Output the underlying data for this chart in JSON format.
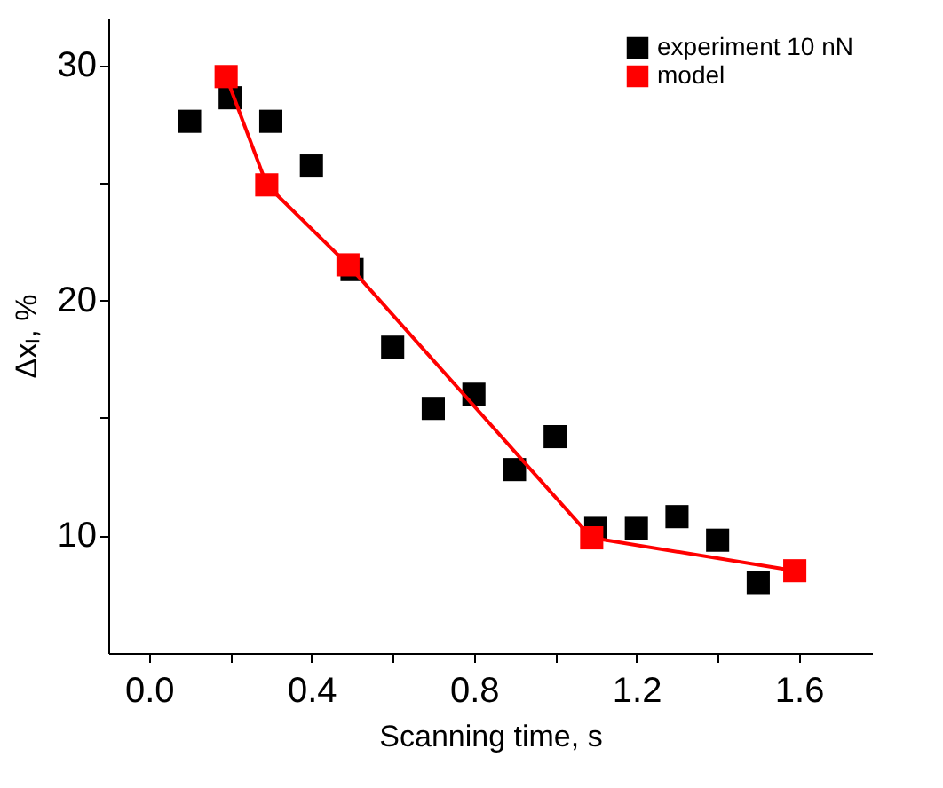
{
  "chart_data": {
    "type": "scatter",
    "xlabel": "Scanning time, s",
    "ylabel": "Δxₗ, %",
    "xlim": [
      -0.1,
      1.78
    ],
    "ylim": [
      5,
      32
    ],
    "xticks": [
      {
        "value": 0,
        "label": "0.0"
      },
      {
        "value": 0.2,
        "label": null
      },
      0.4,
      {
        "value": 0.6,
        "label": null
      },
      0.8,
      {
        "value": 1.0,
        "label": null
      },
      1.2,
      {
        "value": 1.4,
        "label": null
      },
      1.6
    ],
    "yticks": [
      10,
      {
        "value": 15,
        "label": null
      },
      20,
      {
        "value": 25,
        "label": null
      },
      30
    ],
    "grid": false,
    "legend": "top right",
    "marker": "square",
    "series": [
      {
        "name": "experiment 10 nN",
        "color": "#000000",
        "x": [
          0.1,
          0.2,
          0.3,
          0.4,
          0.5,
          0.6,
          0.7,
          0.8,
          0.9,
          1.0,
          1.1,
          1.2,
          1.3,
          1.4,
          1.5
        ],
        "values": [
          27.6,
          28.6,
          27.6,
          25.7,
          21.3,
          18.0,
          15.4,
          16.0,
          12.8,
          14.2,
          10.3,
          10.3,
          10.8,
          9.8,
          8.0
        ]
      },
      {
        "name": "model",
        "type": "line",
        "color": "#ff0000",
        "line_style": "solid",
        "x": [
          0.19,
          0.29,
          0.49,
          1.09,
          1.59
        ],
        "values": [
          29.5,
          24.9,
          21.5,
          9.9,
          8.5
        ]
      }
    ]
  }
}
